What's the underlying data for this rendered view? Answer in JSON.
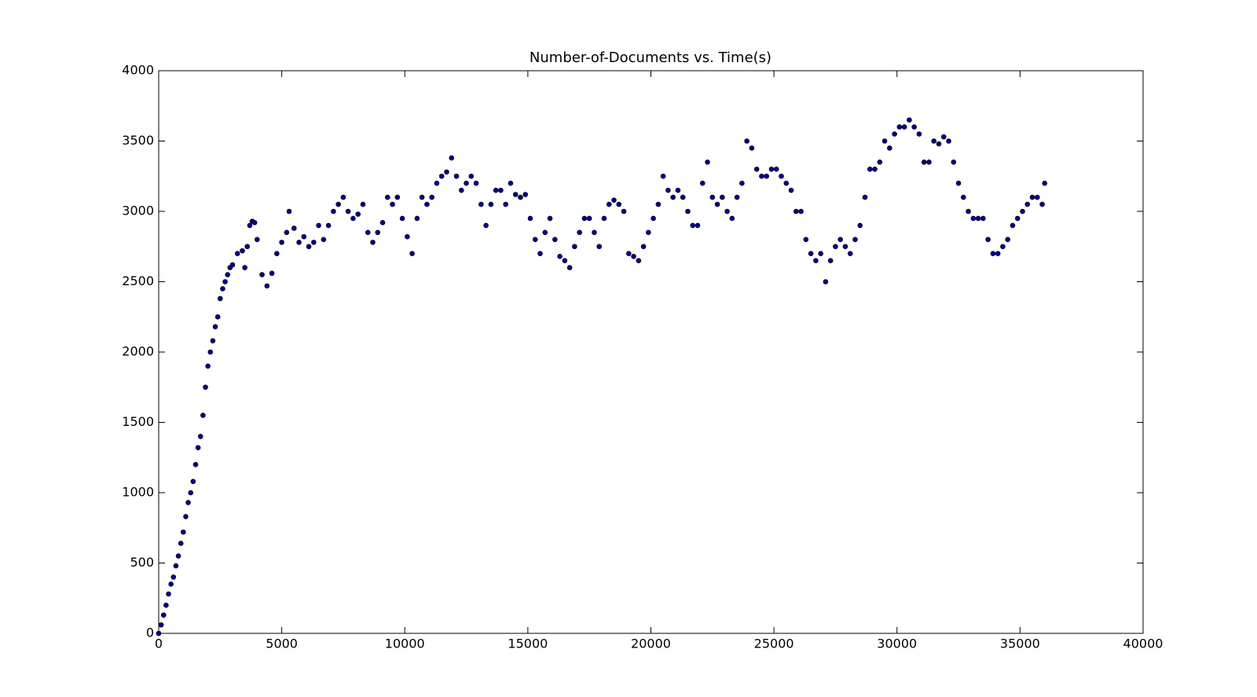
{
  "chart_data": {
    "type": "scatter",
    "title": "Number-of-Documents vs. Time(s)",
    "x": [
      0,
      100,
      200,
      300,
      400,
      500,
      600,
      700,
      800,
      900,
      1000,
      1100,
      1200,
      1300,
      1400,
      1500,
      1600,
      1700,
      1800,
      1900,
      2000,
      2100,
      2200,
      2300,
      2400,
      2500,
      2600,
      2700,
      2800,
      2900,
      3000,
      3200,
      3400,
      3500,
      3600,
      3700,
      3800,
      3900,
      4000,
      4200,
      4400,
      4600,
      4800,
      5000,
      5200,
      5300,
      5500,
      5700,
      5900,
      6100,
      6300,
      6500,
      6700,
      6900,
      7100,
      7300,
      7500,
      7700,
      7900,
      8100,
      8300,
      8500,
      8700,
      8900,
      9100,
      9300,
      9500,
      9700,
      9900,
      10100,
      10300,
      10500,
      10700,
      10900,
      11100,
      11300,
      11500,
      11700,
      11900,
      12100,
      12300,
      12500,
      12700,
      12900,
      13100,
      13300,
      13500,
      13700,
      13900,
      14100,
      14300,
      14500,
      14700,
      14900,
      15100,
      15300,
      15500,
      15700,
      15900,
      16100,
      16300,
      16500,
      16700,
      16900,
      17100,
      17300,
      17500,
      17700,
      17900,
      18100,
      18300,
      18500,
      18700,
      18900,
      19100,
      19300,
      19500,
      19700,
      19900,
      20100,
      20300,
      20500,
      20700,
      20900,
      21100,
      21300,
      21500,
      21700,
      21900,
      22100,
      22300,
      22500,
      22700,
      22900,
      23100,
      23300,
      23500,
      23700,
      23900,
      24100,
      24300,
      24500,
      24700,
      24900,
      25100,
      25300,
      25500,
      25700,
      25900,
      26100,
      26300,
      26500,
      26700,
      26900,
      27100,
      27300,
      27500,
      27700,
      27900,
      28100,
      28300,
      28500,
      28700,
      28900,
      29100,
      29300,
      29500,
      29700,
      29900,
      30100,
      30300,
      30500,
      30700,
      30900,
      31100,
      31300,
      31500,
      31700,
      31900,
      32100,
      32300,
      32500,
      32700,
      32900,
      33100,
      33300,
      33500,
      33700,
      33900,
      34100,
      34300,
      34500,
      34700,
      34900,
      35100,
      35300,
      35500,
      35700,
      35900,
      36000
    ],
    "values": [
      0,
      60,
      130,
      200,
      280,
      350,
      400,
      480,
      550,
      640,
      720,
      830,
      930,
      1000,
      1080,
      1200,
      1320,
      1400,
      1550,
      1750,
      1900,
      2000,
      2080,
      2180,
      2250,
      2380,
      2450,
      2500,
      2550,
      2600,
      2620,
      2700,
      2720,
      2600,
      2750,
      2900,
      2930,
      2920,
      2800,
      2550,
      2470,
      2560,
      2700,
      2780,
      2850,
      3000,
      2880,
      2780,
      2820,
      2750,
      2780,
      2900,
      2800,
      2900,
      3000,
      3050,
      3100,
      3000,
      2950,
      2980,
      3050,
      2850,
      2780,
      2850,
      2920,
      3100,
      3050,
      3100,
      2950,
      2820,
      2700,
      2950,
      3100,
      3050,
      3100,
      3200,
      3250,
      3280,
      3380,
      3250,
      3150,
      3200,
      3250,
      3200,
      3050,
      2900,
      3050,
      3150,
      3150,
      3050,
      3200,
      3120,
      3100,
      3120,
      2950,
      2800,
      2700,
      2850,
      2950,
      2800,
      2680,
      2650,
      2600,
      2750,
      2850,
      2950,
      2950,
      2850,
      2750,
      2950,
      3050,
      3080,
      3050,
      3000,
      2700,
      2680,
      2650,
      2750,
      2850,
      2950,
      3050,
      3250,
      3150,
      3100,
      3150,
      3100,
      3000,
      2900,
      2900,
      3200,
      3350,
      3100,
      3050,
      3100,
      3000,
      2950,
      3100,
      3200,
      3500,
      3450,
      3300,
      3250,
      3250,
      3300,
      3300,
      3250,
      3200,
      3150,
      3000,
      3000,
      2800,
      2700,
      2650,
      2700,
      2500,
      2650,
      2750,
      2800,
      2750,
      2700,
      2800,
      2900,
      3100,
      3300,
      3300,
      3350,
      3500,
      3450,
      3550,
      3600,
      3600,
      3650,
      3600,
      3550,
      3350,
      3350,
      3500,
      3480,
      3530,
      3500,
      3350,
      3200,
      3100,
      3000,
      2950,
      2950,
      2950,
      2800,
      2700,
      2700,
      2750,
      2800,
      2900,
      2950,
      3000,
      3050,
      3100,
      3100,
      3050,
      3200
    ],
    "color": "#00008b",
    "xlim": [
      0,
      40000
    ],
    "xticks": [
      0,
      5000,
      10000,
      15000,
      20000,
      25000,
      30000,
      35000,
      40000
    ],
    "ylim": [
      0,
      4000
    ],
    "yticks": [
      0,
      500,
      1000,
      1500,
      2000,
      2500,
      3000,
      3500,
      4000
    ]
  }
}
